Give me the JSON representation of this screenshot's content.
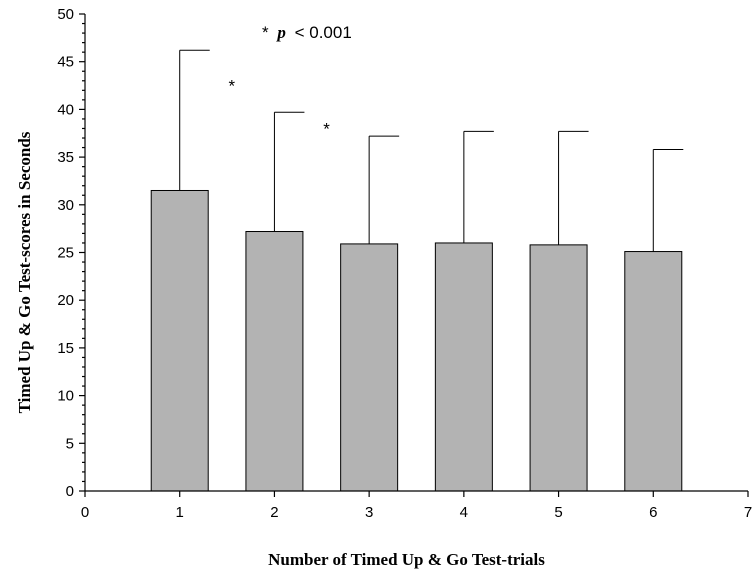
{
  "chart_data": {
    "type": "bar",
    "xlabel": "Number of Timed Up & Go Test-trials",
    "ylabel": "Timed Up & Go Test-scores in Seconds",
    "xlim": [
      0,
      7
    ],
    "ylim": [
      0,
      50
    ],
    "x_ticks": [
      "0",
      "1",
      "2",
      "3",
      "4",
      "5",
      "6",
      "7"
    ],
    "y_ticks": [
      "0",
      "5",
      "10",
      "15",
      "20",
      "25",
      "30",
      "35",
      "40",
      "45",
      "50"
    ],
    "x": [
      1,
      2,
      3,
      4,
      5,
      6
    ],
    "values": [
      31.5,
      27.2,
      25.9,
      26.0,
      25.8,
      25.1
    ],
    "error_upper": [
      46.2,
      39.7,
      37.2,
      37.7,
      37.7,
      35.8
    ],
    "bar_color": "#b3b3b3",
    "grid": false,
    "annotations": {
      "legend_star": "*",
      "legend_p": "p",
      "legend_rest": "< 0.001",
      "marks": [
        {
          "text": "*",
          "x": 1.55,
          "y": 42.5
        },
        {
          "text": "*",
          "x": 2.55,
          "y": 38.0
        }
      ]
    }
  }
}
